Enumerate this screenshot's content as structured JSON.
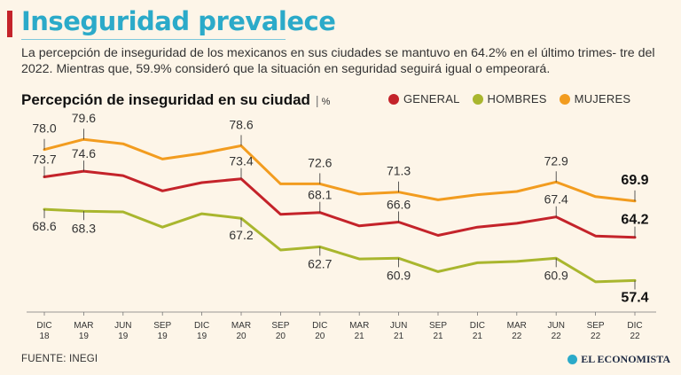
{
  "header": {
    "title": "Inseguridad prevalece",
    "subtitle": "La percepción de inseguridad de los mexicanos en sus ciudades se mantuvo en 64.2% en el último trimes- tre del 2022. Mientras que, 59.9% consideró que la situación en seguridad seguirá igual o empeorará."
  },
  "chart_title": {
    "text": "Percepción de inseguridad en su ciudad",
    "separator": "|",
    "unit": "%"
  },
  "colors": {
    "general": "#c4232a",
    "hombres": "#a9b62e",
    "mujeres": "#f29c1f",
    "accent": "#2baac9"
  },
  "chart_data": {
    "type": "line",
    "title": "Percepción de inseguridad en su ciudad",
    "ylabel": "%",
    "ylim": [
      53,
      82
    ],
    "categories": [
      [
        "DIC",
        "18"
      ],
      [
        "MAR",
        "19"
      ],
      [
        "JUN",
        "19"
      ],
      [
        "SEP",
        "19"
      ],
      [
        "DIC",
        "19"
      ],
      [
        "MAR",
        "20"
      ],
      [
        "SEP",
        "20"
      ],
      [
        "DIC",
        "20"
      ],
      [
        "MAR",
        "21"
      ],
      [
        "JUN",
        "21"
      ],
      [
        "SEP",
        "21"
      ],
      [
        "DIC",
        "21"
      ],
      [
        "MAR",
        "22"
      ],
      [
        "JUN",
        "22"
      ],
      [
        "SEP",
        "22"
      ],
      [
        "DIC",
        "22"
      ]
    ],
    "series": [
      {
        "name": "GENERAL",
        "key": "general",
        "values": [
          73.7,
          74.6,
          73.9,
          71.5,
          72.8,
          73.4,
          67.8,
          68.1,
          66.0,
          66.6,
          64.5,
          65.8,
          66.4,
          67.4,
          64.4,
          64.2
        ],
        "labels": [
          [
            0,
            "73.7"
          ],
          [
            1,
            "74.6"
          ],
          [
            5,
            "73.4"
          ],
          [
            7,
            "68.1"
          ],
          [
            9,
            "66.6"
          ],
          [
            13,
            "67.4"
          ],
          [
            15,
            "64.2"
          ]
        ]
      },
      {
        "name": "HOMBRES",
        "key": "hombres",
        "values": [
          68.6,
          68.3,
          68.2,
          65.8,
          67.9,
          67.2,
          62.2,
          62.7,
          60.8,
          60.9,
          58.8,
          60.2,
          60.4,
          60.9,
          57.2,
          57.4
        ],
        "labels": [
          [
            0,
            "68.6"
          ],
          [
            1,
            "68.3"
          ],
          [
            5,
            "67.2"
          ],
          [
            7,
            "62.7"
          ],
          [
            9,
            "60.9"
          ],
          [
            13,
            "60.9"
          ],
          [
            15,
            "57.4"
          ]
        ]
      },
      {
        "name": "MUJERES",
        "key": "mujeres",
        "values": [
          78.0,
          79.6,
          78.9,
          76.5,
          77.4,
          78.6,
          72.6,
          72.6,
          71.0,
          71.3,
          70.1,
          70.9,
          71.4,
          72.9,
          70.6,
          69.9
        ],
        "labels": [
          [
            0,
            "78.0"
          ],
          [
            1,
            "79.6"
          ],
          [
            5,
            "78.6"
          ],
          [
            7,
            "72.6"
          ],
          [
            9,
            "71.3"
          ],
          [
            13,
            "72.9"
          ],
          [
            15,
            "69.9"
          ]
        ]
      }
    ]
  },
  "footer": {
    "source": "FUENTE: INEGI",
    "brand": "EL ECONOMISTA"
  }
}
